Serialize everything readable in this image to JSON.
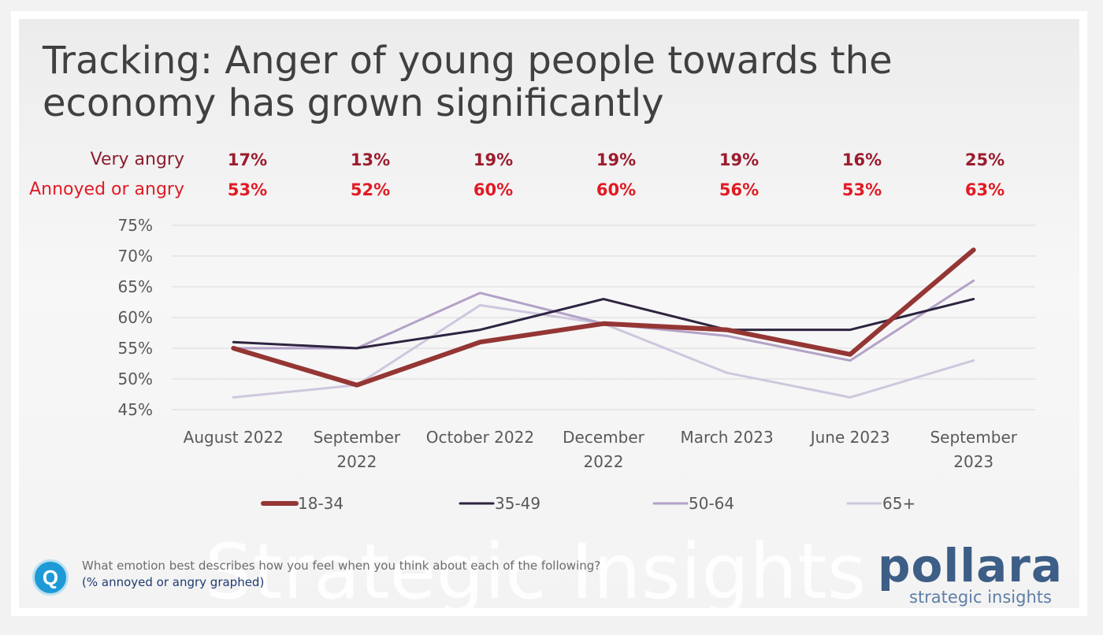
{
  "title": "Tracking: Anger of young people towards the economy has grown significantly",
  "rows": {
    "very_angry_label": "Very angry",
    "annoyed_label": "Annoyed or angry",
    "very_angry": [
      "17%",
      "13%",
      "19%",
      "19%",
      "19%",
      "16%",
      "25%"
    ],
    "annoyed": [
      "53%",
      "52%",
      "60%",
      "60%",
      "56%",
      "53%",
      "63%"
    ]
  },
  "footer": {
    "question": "What emotion best describes how you feel when you think about each of the following?",
    "note": "(% annoyed or angry graphed)",
    "q_letter": "Q",
    "watermark": "Strategic Insights",
    "logo": "pollara",
    "logo_sub": "strategic insights"
  },
  "colors": {
    "s1834": "#943634",
    "s3549": "#2e2440",
    "s5064": "#b3a2c7",
    "s65": "#cfc7de",
    "accent": "#e01b24"
  },
  "chart_data": {
    "type": "line",
    "categories": [
      [
        "August 2022"
      ],
      [
        "September",
        "2022"
      ],
      [
        "October 2022"
      ],
      [
        "December",
        "2022"
      ],
      [
        "March 2023"
      ],
      [
        "June 2023"
      ],
      [
        "September",
        "2023"
      ]
    ],
    "ylim": [
      45,
      75
    ],
    "yticks": [
      45,
      50,
      55,
      60,
      65,
      70,
      75
    ],
    "ytick_labels": [
      "45%",
      "50%",
      "55%",
      "60%",
      "65%",
      "70%",
      "75%"
    ],
    "grid": true,
    "legend": "bottom",
    "series": [
      {
        "name": "18-34",
        "values": [
          55,
          49,
          56,
          59,
          58,
          54,
          71
        ],
        "color": "#943634",
        "width": 6
      },
      {
        "name": "35-49",
        "values": [
          56,
          55,
          58,
          63,
          58,
          58,
          63
        ],
        "color": "#2e2440",
        "width": 3
      },
      {
        "name": "50-64",
        "values": [
          55,
          55,
          64,
          59,
          57,
          53,
          66
        ],
        "color": "#b3a2c7",
        "width": 3
      },
      {
        "name": "65+",
        "values": [
          47,
          49,
          62,
          59,
          51,
          47,
          53
        ],
        "color": "#cfc7de",
        "width": 3
      }
    ]
  }
}
